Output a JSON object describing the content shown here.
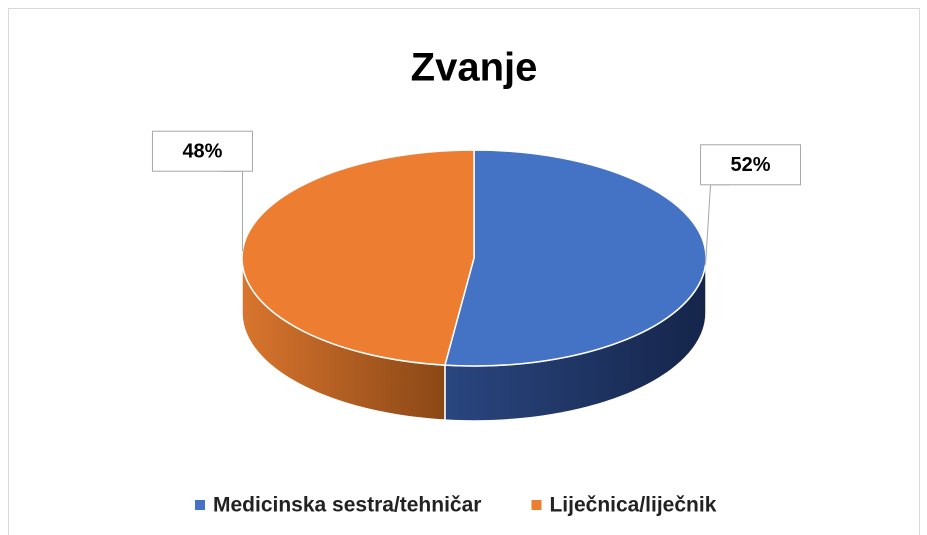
{
  "chart_data": {
    "type": "pie",
    "title": "Zvanje",
    "categories": [
      "Medicinska sestra/tehničar",
      "Liječnica/liječnik"
    ],
    "values": [
      52,
      48
    ],
    "value_labels": [
      "52%",
      "48%"
    ],
    "colors": [
      "#4472c4",
      "#ed7d31"
    ],
    "legend": "bottom"
  }
}
